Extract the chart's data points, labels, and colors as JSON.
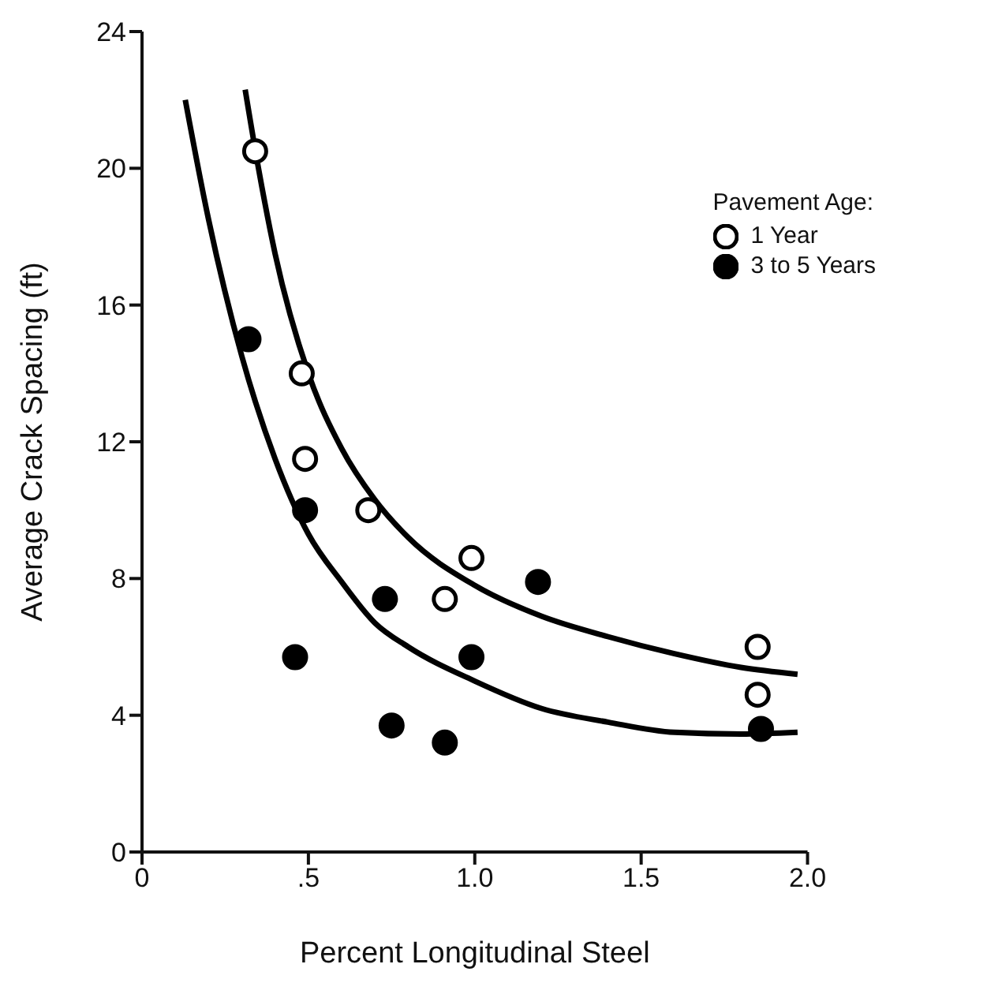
{
  "chart_data": {
    "type": "scatter",
    "xlabel": "Percent Longitudinal Steel",
    "ylabel": "Average Crack Spacing (ft)",
    "legend_title": "Pavement Age:",
    "legend": "top right",
    "marker": "circle",
    "xlim": [
      0,
      2
    ],
    "xticks": [
      0,
      {
        "value": 0.5,
        "label": ".5"
      },
      {
        "value": 1,
        "label": "1.0"
      },
      {
        "value": 1.5,
        "label": "1.5"
      },
      {
        "value": 2,
        "label": "2.0"
      }
    ],
    "ylim": [
      0,
      24
    ],
    "yticks": [
      0,
      4,
      8,
      12,
      16,
      20,
      24
    ],
    "series": [
      {
        "name": "1 Year",
        "color": "#ffffff",
        "x": [
          0.34,
          0.48,
          0.49,
          0.68,
          0.99,
          0.91,
          1.85,
          1.85
        ],
        "values": [
          20.5,
          14.0,
          11.5,
          10.0,
          8.6,
          7.4,
          6.0,
          4.6
        ]
      },
      {
        "name": "3 to 5 Years",
        "color": "#000000",
        "x": [
          0.32,
          0.49,
          0.46,
          0.73,
          0.75,
          0.91,
          0.99,
          1.19,
          1.86
        ],
        "values": [
          15.0,
          10.0,
          5.7,
          7.4,
          3.7,
          3.2,
          5.7,
          7.9,
          3.6
        ]
      },
      {
        "type": "line",
        "marker": "none",
        "color": "#000000",
        "x": [
          0.31,
          0.35,
          0.4,
          0.5,
          0.6,
          0.7,
          0.8,
          1.0,
          1.2,
          1.4,
          1.6,
          1.8,
          1.97
        ],
        "values": [
          22.3,
          20,
          17.5,
          14,
          11.8,
          10.3,
          9.2,
          7.8,
          6.9,
          6.3,
          5.8,
          5.4,
          5.2
        ]
      },
      {
        "type": "line",
        "marker": "none",
        "color": "#000000",
        "x": [
          0.13,
          0.2,
          0.3,
          0.4,
          0.5,
          0.6,
          0.7,
          0.8,
          1.0,
          1.2,
          1.4,
          1.6,
          1.8,
          1.97
        ],
        "values": [
          22,
          18.5,
          14.5,
          11.5,
          9.3,
          7.9,
          6.7,
          6.0,
          5.0,
          4.2,
          3.8,
          3.5,
          3.45,
          3.5
        ]
      }
    ]
  }
}
